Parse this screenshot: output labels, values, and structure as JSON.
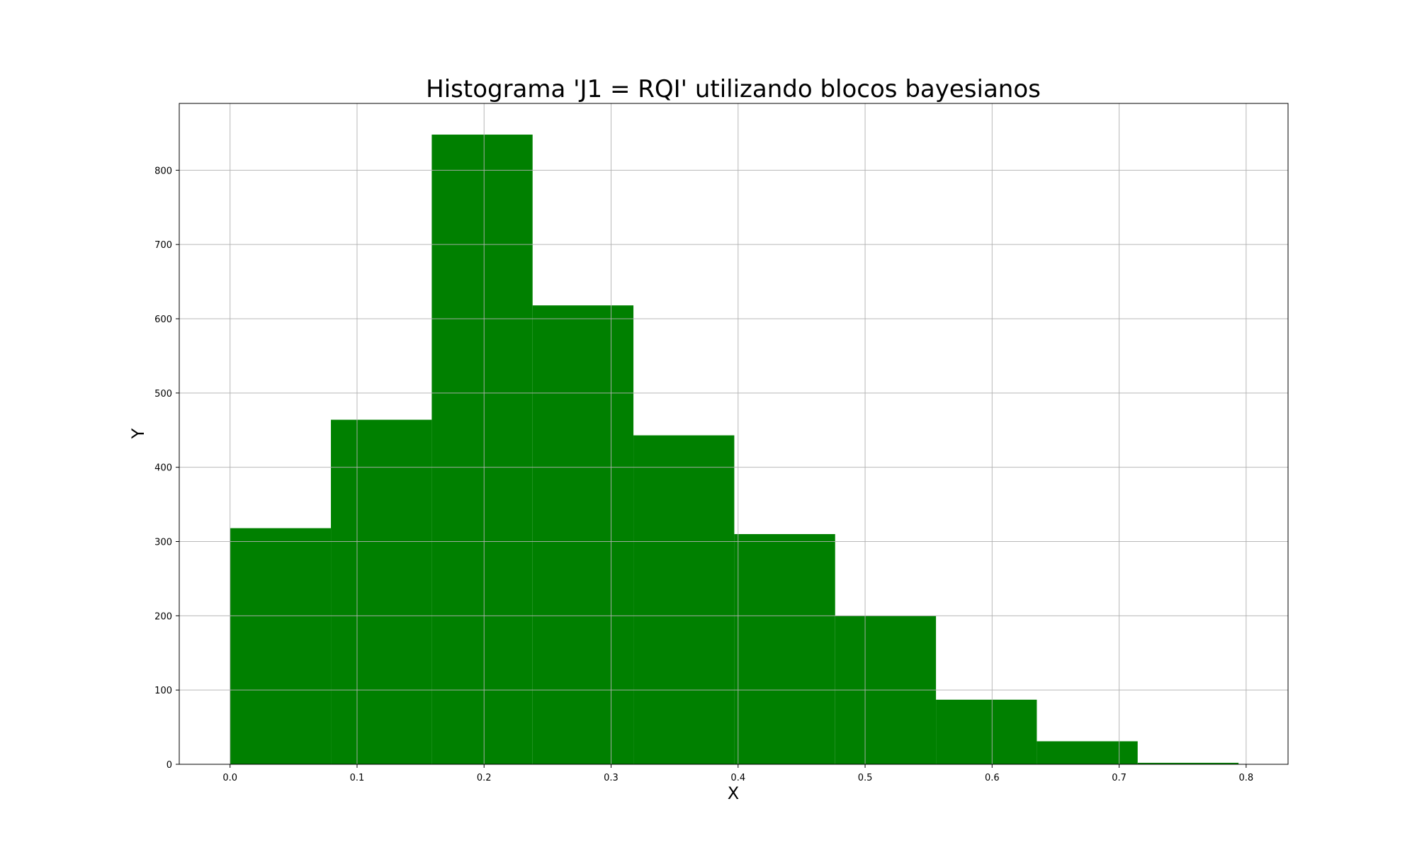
{
  "chart_data": {
    "type": "bar",
    "title": "Histograma 'J1 = RQI' utilizando blocos bayesianos",
    "xlabel": "X",
    "ylabel": "Y",
    "bin_edges": [
      0.0,
      0.0794,
      0.1588,
      0.2382,
      0.3176,
      0.397,
      0.4764,
      0.5558,
      0.6352,
      0.7146,
      0.794
    ],
    "values": [
      318,
      464,
      848,
      618,
      443,
      310,
      200,
      87,
      31,
      2
    ],
    "xlim": [
      -0.04,
      0.833
    ],
    "ylim": [
      0,
      890
    ],
    "xticks": [
      "0.0",
      "0.1",
      "0.2",
      "0.3",
      "0.4",
      "0.5",
      "0.6",
      "0.7",
      "0.8"
    ],
    "yticks": [
      "0",
      "100",
      "200",
      "300",
      "400",
      "500",
      "600",
      "700",
      "800"
    ],
    "bar_color": "#008000",
    "grid": true
  }
}
